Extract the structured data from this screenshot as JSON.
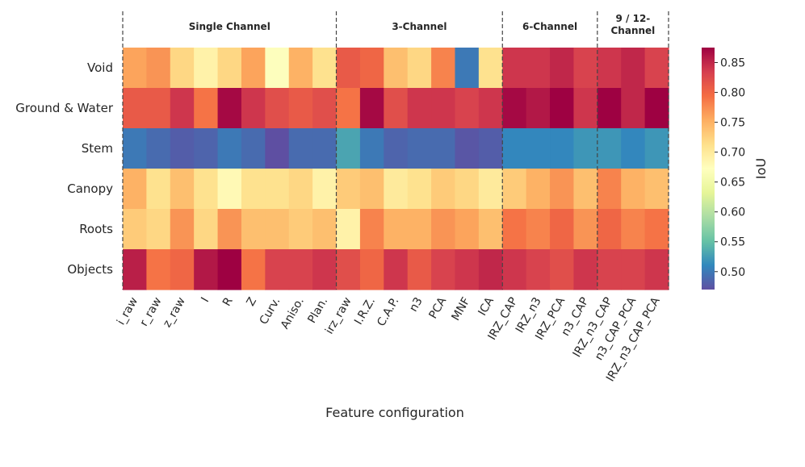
{
  "chart_data": {
    "type": "heatmap",
    "xlabel": "Feature configuration",
    "colorbar_label": "IoU",
    "colorbar_ticks": [
      "0.50",
      "0.55",
      "0.60",
      "0.65",
      "0.70",
      "0.75",
      "0.80",
      "0.85"
    ],
    "colorbar_range": [
      0.47,
      0.875
    ],
    "rows": [
      "Void",
      "Ground & Water",
      "Stem",
      "Canopy",
      "Roots",
      "Objects"
    ],
    "columns": [
      "i_raw",
      "r_raw",
      "z_raw",
      "I",
      "R",
      "Z",
      "Curv.",
      "Aniso.",
      "Plan.",
      "irz_raw",
      "I.R.Z.",
      "C.A.P.",
      "n3",
      "PCA",
      "MNF",
      "ICA",
      "IRZ_CAP",
      "IRZ_n3",
      "IRZ_PCA",
      "n3_CAP",
      "IRZ_n3_CAP",
      "n3_CAP_PCA",
      "IRZ_n3_CAP_PCA"
    ],
    "groups": [
      {
        "label": "Single Channel",
        "start": 0,
        "end": 9
      },
      {
        "label": "3-Channel",
        "start": 9,
        "end": 16
      },
      {
        "label": "6-Channel",
        "start": 16,
        "end": 20
      },
      {
        "label": "9 / 12-\nChannel",
        "start": 20,
        "end": 23
      }
    ],
    "values": [
      [
        0.76,
        0.77,
        0.72,
        0.69,
        0.72,
        0.76,
        0.67,
        0.75,
        0.71,
        0.81,
        0.8,
        0.74,
        0.72,
        0.78,
        0.5,
        0.71,
        0.84,
        0.84,
        0.85,
        0.83,
        0.84,
        0.85,
        0.83
      ],
      [
        0.81,
        0.81,
        0.84,
        0.79,
        0.87,
        0.84,
        0.82,
        0.81,
        0.82,
        0.79,
        0.87,
        0.82,
        0.84,
        0.84,
        0.83,
        0.84,
        0.87,
        0.86,
        0.875,
        0.84,
        0.875,
        0.85,
        0.875
      ],
      [
        0.5,
        0.49,
        0.48,
        0.485,
        0.5,
        0.49,
        0.47,
        0.49,
        0.49,
        0.53,
        0.5,
        0.485,
        0.49,
        0.49,
        0.475,
        0.48,
        0.51,
        0.51,
        0.51,
        0.52,
        0.52,
        0.51,
        0.52
      ],
      [
        0.75,
        0.71,
        0.74,
        0.71,
        0.68,
        0.71,
        0.71,
        0.72,
        0.69,
        0.73,
        0.74,
        0.7,
        0.71,
        0.73,
        0.72,
        0.7,
        0.73,
        0.75,
        0.77,
        0.74,
        0.78,
        0.75,
        0.74
      ],
      [
        0.73,
        0.72,
        0.77,
        0.72,
        0.77,
        0.74,
        0.74,
        0.73,
        0.74,
        0.69,
        0.78,
        0.75,
        0.75,
        0.77,
        0.76,
        0.74,
        0.79,
        0.78,
        0.8,
        0.77,
        0.8,
        0.78,
        0.79
      ],
      [
        0.855,
        0.79,
        0.8,
        0.86,
        0.875,
        0.79,
        0.83,
        0.83,
        0.84,
        0.82,
        0.8,
        0.84,
        0.81,
        0.83,
        0.84,
        0.85,
        0.84,
        0.83,
        0.82,
        0.84,
        0.83,
        0.83,
        0.84
      ]
    ]
  }
}
